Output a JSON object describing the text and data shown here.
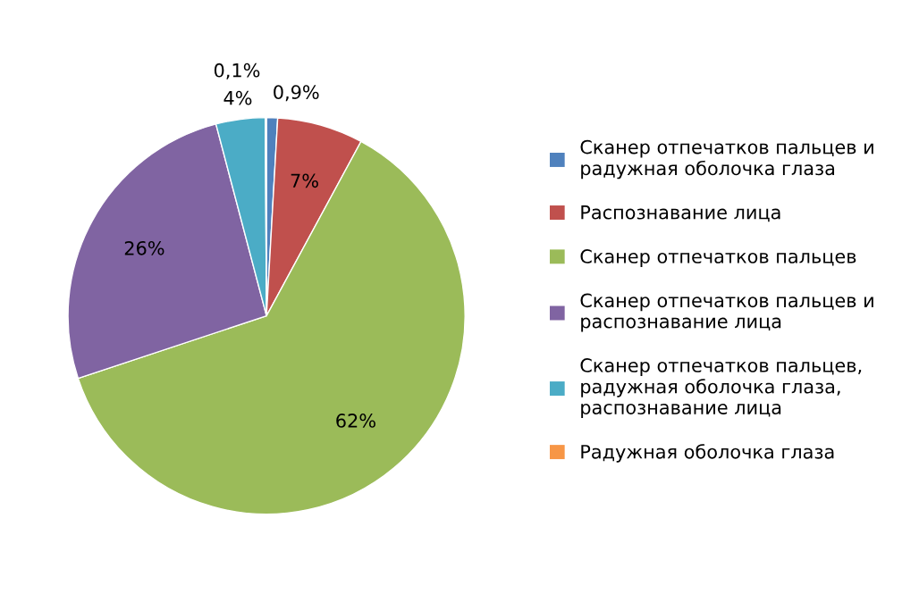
{
  "chart_data": {
    "type": "pie",
    "categories": [
      "Сканер отпечатков пальцев и радужная оболочка глаза",
      "Распознавание лица",
      "Сканер отпечатков пальцев",
      "Сканер отпечатков пальцев и распознавание лица",
      "Сканер отпечатков пальцев, радужная оболочка глаза, распознавание лица",
      "Радужная оболочка глаза"
    ],
    "values": [
      0.9,
      7,
      62,
      26,
      4,
      0.1
    ],
    "colors": [
      "#4f81bd",
      "#c0504d",
      "#9bbb59",
      "#8064a2",
      "#4bacc6",
      "#f79646"
    ],
    "value_labels": [
      "0,9%",
      "7%",
      "62%",
      "26%",
      "4%",
      "0,1%"
    ],
    "legend": "right"
  }
}
